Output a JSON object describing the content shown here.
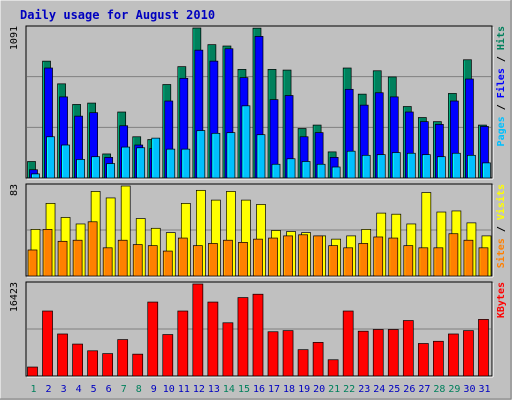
{
  "title": "Daily usage for August 2010",
  "colors": {
    "background": "#c0c0c0",
    "title": "#0000c0",
    "hits": "#00805c",
    "files": "#0000ff",
    "pages": "#00c0ff",
    "visits": "#ffff00",
    "sites": "#ff8000",
    "kbytes": "#ff0000",
    "weekend_day": "#00805c",
    "weekday": "#0000c0"
  },
  "chart_data": [
    {
      "type": "bar",
      "panel": "hits_files_pages",
      "ymax_label": "1091",
      "ylim": [
        0,
        1091
      ],
      "legend": [
        "Pages",
        "Files",
        "Hits"
      ],
      "categories": [
        "1",
        "2",
        "3",
        "4",
        "5",
        "6",
        "7",
        "8",
        "9",
        "10",
        "11",
        "12",
        "13",
        "14",
        "15",
        "16",
        "17",
        "18",
        "19",
        "20",
        "21",
        "22",
        "23",
        "24",
        "25",
        "26",
        "27",
        "28",
        "29",
        "30",
        "31"
      ],
      "weekend_days": [
        1,
        7,
        8,
        14,
        15,
        21,
        22,
        28,
        29
      ],
      "series": [
        {
          "name": "Hits",
          "values": [
            120,
            850,
            685,
            535,
            545,
            175,
            480,
            300,
            280,
            680,
            810,
            1091,
            970,
            960,
            790,
            1090,
            790,
            785,
            360,
            385,
            190,
            800,
            610,
            780,
            735,
            520,
            440,
            410,
            615,
            860,
            385
          ]
        },
        {
          "name": "Files",
          "values": [
            60,
            800,
            590,
            450,
            475,
            150,
            380,
            240,
            215,
            560,
            725,
            930,
            850,
            940,
            730,
            1030,
            570,
            600,
            300,
            330,
            150,
            645,
            530,
            620,
            590,
            480,
            410,
            390,
            560,
            720,
            375
          ]
        },
        {
          "name": "Pages",
          "values": [
            30,
            300,
            240,
            135,
            155,
            105,
            225,
            220,
            290,
            210,
            210,
            345,
            325,
            330,
            525,
            315,
            100,
            140,
            120,
            100,
            80,
            195,
            165,
            170,
            185,
            180,
            170,
            155,
            180,
            165,
            110
          ]
        }
      ]
    },
    {
      "type": "bar",
      "panel": "visits_sites",
      "ymax_label": "83",
      "ylim": [
        0,
        83
      ],
      "legend": [
        "Sites",
        "Visits"
      ],
      "categories": [
        "1",
        "2",
        "3",
        "4",
        "5",
        "6",
        "7",
        "8",
        "9",
        "10",
        "11",
        "12",
        "13",
        "14",
        "15",
        "16",
        "17",
        "18",
        "19",
        "20",
        "21",
        "22",
        "23",
        "24",
        "25",
        "26",
        "27",
        "28",
        "29",
        "30",
        "31"
      ],
      "series": [
        {
          "name": "Visits",
          "values": [
            43,
            67,
            54,
            48,
            78,
            72,
            83,
            53,
            44,
            40,
            67,
            79,
            70,
            78,
            70,
            66,
            42,
            41,
            40,
            37,
            34,
            37,
            43,
            58,
            57,
            48,
            77,
            59,
            60,
            49,
            37
          ]
        },
        {
          "name": "Sites",
          "values": [
            24,
            43,
            32,
            33,
            50,
            26,
            33,
            29,
            28,
            23,
            35,
            28,
            30,
            33,
            31,
            34,
            35,
            37,
            38,
            37,
            28,
            26,
            30,
            36,
            35,
            28,
            26,
            26,
            39,
            33,
            26
          ]
        }
      ]
    },
    {
      "type": "bar",
      "panel": "kbytes",
      "ymax_label": "16423",
      "ylim": [
        0,
        16423
      ],
      "legend": [
        "KBytes"
      ],
      "categories": [
        "1",
        "2",
        "3",
        "4",
        "5",
        "6",
        "7",
        "8",
        "9",
        "10",
        "11",
        "12",
        "13",
        "14",
        "15",
        "16",
        "17",
        "18",
        "19",
        "20",
        "21",
        "22",
        "23",
        "24",
        "25",
        "26",
        "27",
        "28",
        "29",
        "30",
        "31"
      ],
      "series": [
        {
          "name": "KBytes",
          "values": [
            1600,
            11600,
            7500,
            5700,
            4500,
            4000,
            6500,
            3900,
            13200,
            7400,
            11600,
            16423,
            13200,
            9500,
            14000,
            14600,
            7900,
            8100,
            4700,
            6000,
            2900,
            11600,
            8000,
            8300,
            8300,
            9900,
            5800,
            6200,
            7500,
            8100,
            10100
          ]
        }
      ]
    }
  ]
}
